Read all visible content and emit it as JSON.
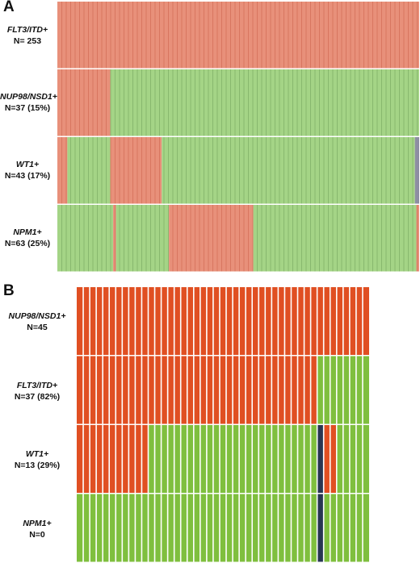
{
  "panels": [
    {
      "letter": "A",
      "colors": {
        "positive": "#e8907a",
        "negative": "#a4d486",
        "unknown": "#8d8ea3",
        "stripe_pos": "#c9604a",
        "stripe_neg": "#6f9f5a"
      },
      "columns": 253,
      "rows": [
        {
          "gene": "FLT3/ITD+",
          "count": "N= 253",
          "segments": [
            {
              "status": "positive",
              "n": 253
            }
          ]
        },
        {
          "gene": "NUP98/NSD1+",
          "count": "N=37 (15%)",
          "segments": [
            {
              "status": "positive",
              "n": 37
            },
            {
              "status": "negative",
              "n": 216
            }
          ]
        },
        {
          "gene": "WT1+",
          "count": "N=43 (17%)",
          "segments": [
            {
              "status": "positive",
              "n": 7
            },
            {
              "status": "negative",
              "n": 30
            },
            {
              "status": "positive",
              "n": 36
            },
            {
              "status": "negative",
              "n": 177
            },
            {
              "status": "unknown",
              "n": 3
            }
          ]
        },
        {
          "gene": "NPM1+",
          "count": "N=63 (25%)",
          "segments": [
            {
              "status": "negative",
              "n": 39
            },
            {
              "status": "positive",
              "n": 2
            },
            {
              "status": "negative",
              "n": 37
            },
            {
              "status": "positive",
              "n": 59
            },
            {
              "status": "negative",
              "n": 114
            },
            {
              "status": "positive",
              "n": 2
            }
          ]
        }
      ]
    },
    {
      "letter": "B",
      "colors": {
        "positive": "#e04f22",
        "negative": "#7fbf3e",
        "unknown": "#273552",
        "stripe_pos": "#ffffff",
        "stripe_neg": "#ffffff"
      },
      "columns": 45,
      "rows": [
        {
          "gene": "NUP98/NSD1+",
          "count": "N=45",
          "segments": [
            {
              "status": "positive",
              "n": 45
            }
          ]
        },
        {
          "gene": "FLT3/ITD+",
          "count": "N=37 (82%)",
          "segments": [
            {
              "status": "positive",
              "n": 37
            },
            {
              "status": "negative",
              "n": 8
            }
          ]
        },
        {
          "gene": "WT1+",
          "count": "N=13 (29%)",
          "segments": [
            {
              "status": "positive",
              "n": 11
            },
            {
              "status": "negative",
              "n": 26
            },
            {
              "status": "unknown",
              "n": 1
            },
            {
              "status": "positive",
              "n": 2
            },
            {
              "status": "negative",
              "n": 5
            }
          ]
        },
        {
          "gene": "NPM1+",
          "count": "N=0",
          "segments": [
            {
              "status": "negative",
              "n": 37
            },
            {
              "status": "unknown",
              "n": 1
            },
            {
              "status": "negative",
              "n": 7
            }
          ]
        }
      ]
    }
  ]
}
